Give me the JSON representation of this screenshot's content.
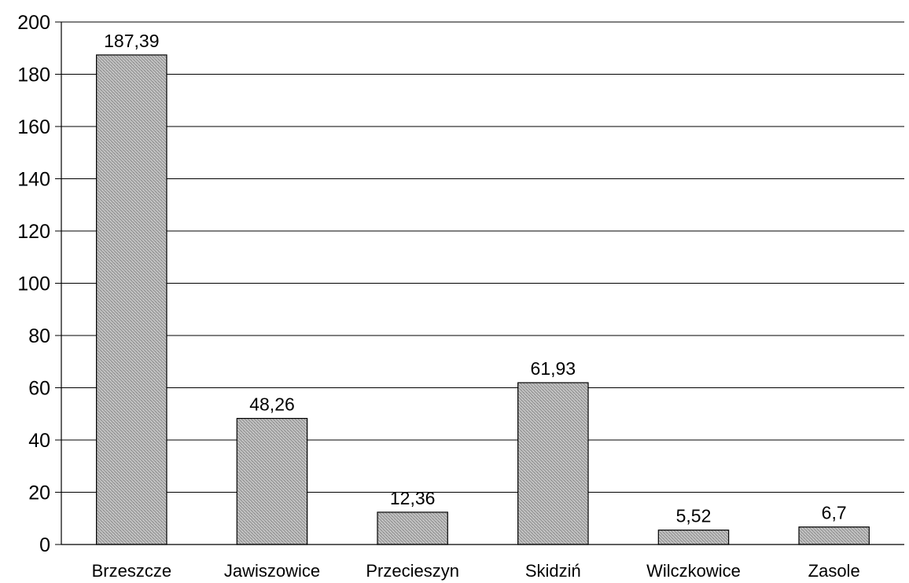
{
  "chart_data": {
    "type": "bar",
    "title": "",
    "xlabel": "",
    "ylabel": "",
    "categories": [
      "Brzeszcze",
      "Jawiszowice",
      "Przecieszyn",
      "Skidziń",
      "Wilczkowice",
      "Zasole"
    ],
    "values": [
      187.39,
      48.26,
      12.36,
      61.93,
      5.52,
      6.7
    ],
    "data_labels": [
      "187,39",
      "48,26",
      "12,36",
      "61,93",
      "5,52",
      "6,7"
    ],
    "ylim": [
      0,
      200
    ],
    "yticks": [
      0,
      20,
      40,
      60,
      80,
      100,
      120,
      140,
      160,
      180,
      200
    ],
    "ytick_labels": [
      "0",
      "20",
      "40",
      "60",
      "80",
      "100",
      "120",
      "140",
      "160",
      "180",
      "200"
    ],
    "grid": true,
    "legend": "none",
    "bar_color": "#b3b3b3",
    "bar_stroke": "#000000"
  }
}
